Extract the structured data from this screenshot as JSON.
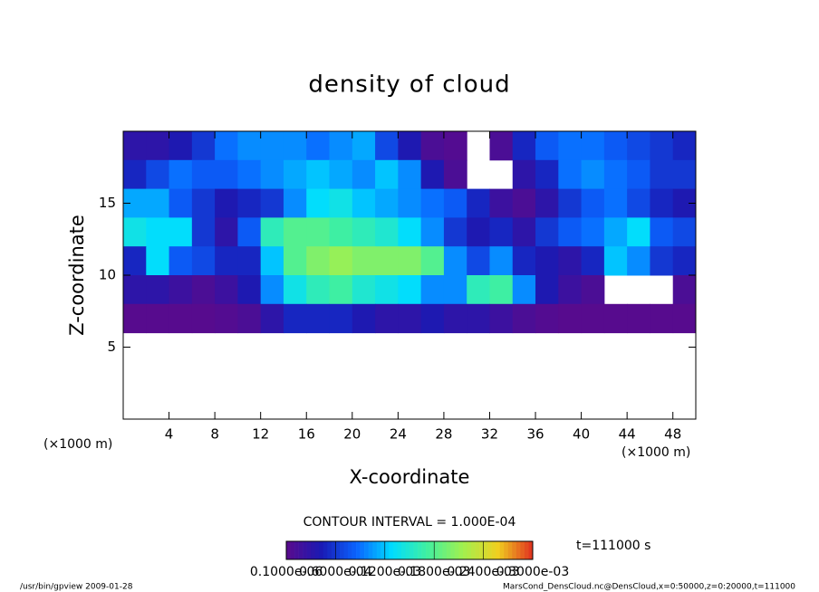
{
  "chart_data": {
    "type": "heatmap",
    "title": "density of cloud",
    "x_label": "X-coordinate",
    "y_label": "Z-coordinate",
    "x_unit": "(×1000 m)",
    "y_unit": "(×1000 m)",
    "xlim": [
      0,
      50
    ],
    "ylim": [
      0,
      20
    ],
    "xticks": [
      4,
      8,
      12,
      16,
      20,
      24,
      28,
      32,
      36,
      40,
      44,
      48
    ],
    "yticks": [
      5,
      10,
      15
    ],
    "xbins": [
      0,
      2,
      4,
      6,
      8,
      10,
      12,
      14,
      16,
      18,
      20,
      22,
      24,
      26,
      28,
      30,
      32,
      34,
      36,
      38,
      40,
      42,
      44,
      46,
      48,
      50
    ],
    "ybins": [
      20,
      18,
      16,
      14,
      12,
      10,
      8,
      6
    ],
    "values": [
      [
        3e-05,
        3e-05,
        4e-05,
        6e-05,
        9e-05,
        0.0001,
        0.0001,
        0.0001,
        9e-05,
        0.0001,
        0.00011,
        7e-05,
        4e-05,
        1e-05,
        5e-06,
        null,
        1e-05,
        5e-05,
        8e-05,
        9e-05,
        9e-05,
        8e-05,
        7e-05,
        6e-05,
        5e-05
      ],
      [
        5e-05,
        7e-05,
        9e-05,
        8e-05,
        8e-05,
        9e-05,
        0.0001,
        0.00011,
        0.00012,
        0.00011,
        0.0001,
        0.00012,
        0.0001,
        4e-05,
        1e-05,
        null,
        null,
        3e-05,
        5e-05,
        9e-05,
        0.0001,
        9e-05,
        8e-05,
        6e-05,
        6e-05
      ],
      [
        0.00011,
        0.00011,
        8e-05,
        6e-05,
        4e-05,
        5e-05,
        6e-05,
        0.0001,
        0.00013,
        0.00014,
        0.00012,
        0.00011,
        0.0001,
        9e-05,
        8e-05,
        5e-05,
        2e-05,
        1e-05,
        3e-05,
        6e-05,
        8e-05,
        9e-05,
        7e-05,
        5e-05,
        4e-05
      ],
      [
        0.00014,
        0.00013,
        0.00013,
        6e-05,
        3e-05,
        8e-05,
        0.00016,
        0.00018,
        0.00018,
        0.00017,
        0.00016,
        0.00015,
        0.00013,
        0.0001,
        6e-05,
        4e-05,
        5e-05,
        3e-05,
        6e-05,
        8e-05,
        9e-05,
        0.00011,
        0.00013,
        8e-05,
        7e-05
      ],
      [
        5e-05,
        0.00013,
        8e-05,
        7e-05,
        5e-05,
        5e-05,
        0.00012,
        0.00018,
        0.0002,
        0.00021,
        0.0002,
        0.0002,
        0.0002,
        0.00018,
        0.0001,
        7e-05,
        0.0001,
        5e-05,
        4e-05,
        3e-05,
        5e-05,
        0.00012,
        0.0001,
        6e-05,
        5e-05
      ],
      [
        3e-05,
        3e-05,
        2e-05,
        1e-05,
        2e-05,
        4e-05,
        0.0001,
        0.00014,
        0.00016,
        0.00017,
        0.00015,
        0.00014,
        0.00013,
        0.0001,
        0.0001,
        0.00016,
        0.00017,
        0.0001,
        4e-05,
        2e-05,
        1e-05,
        null,
        null,
        null,
        1e-05
      ],
      [
        2e-06,
        2e-06,
        2e-06,
        2e-06,
        5e-06,
        1e-05,
        3e-05,
        5e-05,
        5e-05,
        5e-05,
        4e-05,
        3e-05,
        3e-05,
        4e-05,
        3e-05,
        3e-05,
        2e-05,
        1e-05,
        5e-06,
        2e-06,
        2e-06,
        2e-06,
        2e-06,
        2e-06,
        2e-06
      ]
    ],
    "clim": [
      0,
      0.0003
    ],
    "colormap": [
      "#5a0a8c",
      "#1a1ab4",
      "#0a64ff",
      "#00dcff",
      "#40f0a0",
      "#a0f050",
      "#f0d020",
      "#e03020"
    ],
    "colorbar_ticks": [
      {
        "value": 1e-07,
        "label": "0.1000e-06"
      },
      {
        "value": 6e-05,
        "label": "0.6000e-04"
      },
      {
        "value": 0.00012,
        "label": "0.1200e-03"
      },
      {
        "value": 0.00018,
        "label": "0.1800e-03"
      },
      {
        "value": 0.00024,
        "label": "0.2400e-03"
      },
      {
        "value": 0.0003,
        "label": "0.3000e-03"
      }
    ],
    "contour_interval": "CONTOUR INTERVAL = 1.000E-04",
    "time_label": "t=111000 s",
    "footer_left": "/usr/bin/gpview  2009-01-28",
    "footer_right": "MarsCond_DensCloud.nc@DensCloud,x=0:50000,z=0:20000,t=111000"
  }
}
